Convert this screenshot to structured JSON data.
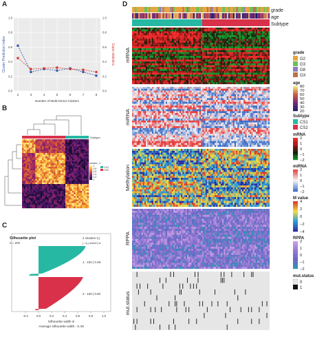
{
  "panels": {
    "a": "A",
    "b": "B",
    "c": "C",
    "d": "D"
  },
  "panel_a": {
    "y_left_label": "Cluster Prediction Index",
    "y_right_label": "Gaps-statistics",
    "x_label": "Number of Multi-Omics Clusters",
    "x_ticks": [
      "2",
      "3",
      "4",
      "5",
      "6",
      "7",
      "8"
    ],
    "y_left_ticks": [
      "0.0",
      "0.2",
      "0.4",
      "0.6",
      "0.8",
      "1.0"
    ],
    "y_right_ticks": [
      "0.0",
      "0.2",
      "0.4",
      "0.6",
      "0.8",
      "1.0"
    ]
  },
  "chart_data": {
    "type": "line",
    "x": [
      2,
      3,
      4,
      5,
      6,
      7,
      8
    ],
    "series": [
      {
        "name": "Cluster Prediction Index",
        "values": [
          0.62,
          0.26,
          0.3,
          0.28,
          0.31,
          0.26,
          0.21
        ],
        "color": "#3a5ba8"
      },
      {
        "name": "Gaps-statistics",
        "values": [
          0.45,
          0.3,
          0.31,
          0.32,
          0.3,
          0.29,
          0.26
        ],
        "color": "#d43f3a"
      }
    ],
    "xlabel": "Number of Multi-Omics Clusters",
    "ylabel": "Cluster Prediction Index",
    "ylim": [
      0,
      1
    ],
    "grid": true
  },
  "panel_b": {
    "subtype_label": "Subtype",
    "legend_title": "cluster_1",
    "legend_ticks": [
      "1",
      "0.8",
      "0.6",
      "0.4",
      "0.2",
      "0"
    ],
    "subtype_legend": [
      "CS1",
      "CS2"
    ]
  },
  "panel_c": {
    "title": "Silhouette plot",
    "n_label": "n = 202",
    "clusters_label": "2 clusters  Cj",
    "header_label": "j : nj | aveieCj si",
    "cluster1": "1 : 102 | 0.48",
    "cluster2": "2 : 100 | 0.50",
    "x_ticks": [
      "-0.2",
      "0.0",
      "0.2",
      "0.4",
      "0.6",
      "0.8",
      "1.0"
    ],
    "x_label": "Silhouette width si",
    "avg_label": "Average silhouette width : 0.49"
  },
  "panel_d": {
    "track_labels": [
      "grade",
      "age",
      "Subtype"
    ],
    "row_labels": [
      "mRNA",
      "miRNA",
      "Methylation",
      "RPPA",
      "mut.status"
    ]
  },
  "legend": {
    "grade_title": "grade",
    "grade_items": [
      {
        "label": "G2",
        "color": "#e8a33b"
      },
      {
        "label": "G3",
        "color": "#6bbf5a"
      },
      {
        "label": "G8",
        "color": "#8a7fc2"
      },
      {
        "label": "GX",
        "color": "#b8744a"
      }
    ],
    "age_title": "age",
    "age_ticks": [
      "80",
      "70",
      "60",
      "50",
      "40",
      "30",
      "20"
    ],
    "subtype_title": "Subtype",
    "subtype_items": [
      {
        "label": "CS1",
        "color": "#27b8a3"
      },
      {
        "label": "CS2",
        "color": "#d9314a"
      }
    ],
    "mrna_title": "mRNA",
    "mrna_ticks": [
      "2",
      "1",
      "0",
      "−1",
      "−2"
    ],
    "mirna_title": "miRNA",
    "mirna_ticks": [
      "2",
      "1",
      "0",
      "−1",
      "−2"
    ],
    "mvalue_title": "M value",
    "mvalue_ticks": [
      "4",
      "2",
      "0",
      "−2",
      "−4"
    ],
    "rppa_title": "RPPA",
    "rppa_ticks": [
      "2",
      "1",
      "0",
      "−1",
      "−2"
    ],
    "mut_title": "mut.status",
    "mut_items": [
      "0",
      "1"
    ]
  }
}
